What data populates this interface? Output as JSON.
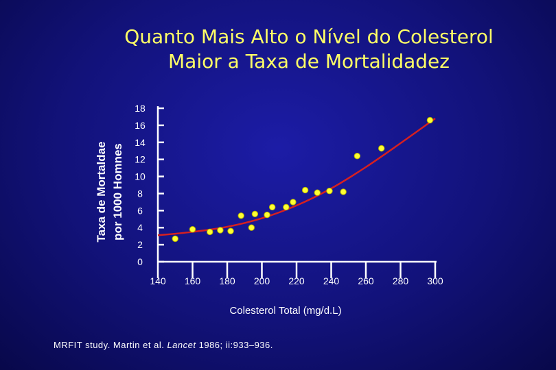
{
  "title_line1": "Quanto Mais Alto o Nível do Colesterol",
  "title_line2": "Maior a Taxa de Mortalidadez",
  "citation": {
    "pre": "MRFIT study. Martin et al. ",
    "journal": "Lancet",
    "post": " 1986; ii:933–936."
  },
  "colors": {
    "background": "#12127a",
    "title": "#ffff66",
    "point": "#ffff33",
    "trend": "#d62020",
    "axis": "#ffffff"
  },
  "chart_data": {
    "type": "scatter",
    "title": "Quanto Mais Alto o Nível do Colesterol Maior a Taxa de Mortalidadez",
    "xlabel": "Colesterol Total (mg/d.L)",
    "ylabel_line1": "Taxa de Mortaldae",
    "ylabel_line2": "por 1000 Homnes",
    "xlim": [
      140,
      300
    ],
    "ylim": [
      0,
      18
    ],
    "x_ticks": [
      "140",
      "160",
      "180",
      "200",
      "220",
      "240",
      "260",
      "280",
      "300"
    ],
    "y_ticks": [
      "0",
      "2",
      "4",
      "6",
      "8",
      "10",
      "12",
      "14",
      "16",
      "18"
    ],
    "grid": false,
    "points": [
      {
        "x": 150,
        "y": 2.7
      },
      {
        "x": 160,
        "y": 3.8
      },
      {
        "x": 170,
        "y": 3.5
      },
      {
        "x": 176,
        "y": 3.7
      },
      {
        "x": 182,
        "y": 3.6
      },
      {
        "x": 188,
        "y": 5.4
      },
      {
        "x": 194,
        "y": 4.0
      },
      {
        "x": 196,
        "y": 5.6
      },
      {
        "x": 203,
        "y": 5.5
      },
      {
        "x": 206,
        "y": 6.4
      },
      {
        "x": 214,
        "y": 6.4
      },
      {
        "x": 218,
        "y": 7.0
      },
      {
        "x": 225,
        "y": 8.4
      },
      {
        "x": 232,
        "y": 8.1
      },
      {
        "x": 239,
        "y": 8.3
      },
      {
        "x": 247,
        "y": 8.2
      },
      {
        "x": 255,
        "y": 12.4
      },
      {
        "x": 269,
        "y": 13.3
      },
      {
        "x": 297,
        "y": 16.6
      }
    ],
    "trend": [
      {
        "x": 140,
        "y": 3.1
      },
      {
        "x": 160,
        "y": 3.5
      },
      {
        "x": 180,
        "y": 4.1
      },
      {
        "x": 200,
        "y": 5.1
      },
      {
        "x": 220,
        "y": 6.6
      },
      {
        "x": 240,
        "y": 8.6
      },
      {
        "x": 260,
        "y": 11.1
      },
      {
        "x": 280,
        "y": 13.9
      },
      {
        "x": 300,
        "y": 16.8
      }
    ]
  }
}
